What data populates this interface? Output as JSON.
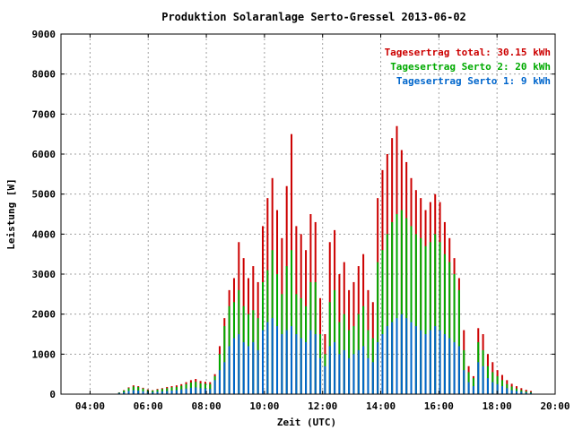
{
  "chart_data": {
    "type": "bar",
    "title": "Produktion Solaranlage Serto-Gressel 2013-06-02",
    "xlabel": "Zeit (UTC)",
    "ylabel": "Leistung [W]",
    "ylim": [
      0,
      9000
    ],
    "xlim": [
      "03:00",
      "20:00"
    ],
    "y_ticks": [
      "0",
      "1000",
      "2000",
      "3000",
      "4000",
      "5000",
      "6000",
      "7000",
      "8000",
      "9000"
    ],
    "x_ticks": [
      "04:00",
      "06:00",
      "08:00",
      "10:00",
      "12:00",
      "14:00",
      "16:00",
      "18:00",
      "20:00"
    ],
    "grid": true,
    "legend_position": "top-right",
    "legend": [
      {
        "label": "Tagesertrag total: 30.15 kWh",
        "color": "#cc0000"
      },
      {
        "label": "Tagesertrag Serto 2: 20 kWh",
        "color": "#00aa00"
      },
      {
        "label": "Tagesertrag Serto 1: 9 kWh",
        "color": "#0066cc"
      }
    ],
    "series": [
      {
        "name": "Serto 1",
        "color": "#0066cc",
        "values": [
          30,
          50,
          80,
          100,
          90,
          70,
          60,
          50,
          60,
          70,
          80,
          90,
          100,
          120,
          140,
          160,
          170,
          150,
          140,
          130,
          350,
          600,
          800,
          1200,
          1400,
          1500,
          1300,
          1200,
          1300,
          1100,
          1600,
          1800,
          1900,
          1700,
          1500,
          1600,
          1700,
          1500,
          1400,
          1300,
          1600,
          1500,
          900,
          700,
          1200,
          1300,
          1000,
          1100,
          900,
          1000,
          1100,
          1200,
          900,
          800,
          1300,
          1500,
          1700,
          1800,
          1900,
          2000,
          1900,
          1800,
          1700,
          1600,
          1500,
          1600,
          1700,
          1600,
          1500,
          1400,
          1300,
          1200,
          600,
          300,
          200,
          800,
          700,
          400,
          300,
          250,
          200,
          150,
          100,
          80,
          60,
          40,
          30
        ]
      },
      {
        "name": "Serto 2",
        "color": "#00aa00",
        "values": [
          40,
          90,
          150,
          190,
          180,
          140,
          100,
          90,
          110,
          130,
          150,
          170,
          180,
          210,
          250,
          290,
          310,
          270,
          260,
          250,
          450,
          1000,
          1700,
          2200,
          2300,
          2600,
          2200,
          2000,
          2100,
          1900,
          2800,
          3100,
          3600,
          3000,
          2500,
          3200,
          3600,
          2500,
          2400,
          2200,
          2800,
          2800,
          1500,
          1000,
          2300,
          2600,
          1800,
          2000,
          1600,
          1700,
          2000,
          2200,
          1600,
          1400,
          3300,
          3600,
          4000,
          4300,
          4500,
          4600,
          4400,
          4200,
          4000,
          3900,
          3700,
          3800,
          4000,
          3800,
          3500,
          3300,
          3000,
          2600,
          1100,
          550,
          400,
          1300,
          1100,
          700,
          550,
          450,
          350,
          250,
          190,
          140,
          100,
          70,
          50
        ]
      },
      {
        "name": "total",
        "color": "#cc0000",
        "values": [
          45,
          100,
          170,
          220,
          200,
          160,
          120,
          100,
          130,
          150,
          180,
          200,
          220,
          250,
          300,
          350,
          380,
          330,
          310,
          300,
          500,
          1200,
          1900,
          2600,
          2900,
          3800,
          3400,
          2900,
          3200,
          2800,
          4200,
          4900,
          5400,
          4600,
          3900,
          5200,
          6500,
          4200,
          4000,
          3600,
          4500,
          4300,
          2400,
          1500,
          3800,
          4100,
          3000,
          3300,
          2600,
          2800,
          3200,
          3500,
          2600,
          2300,
          4900,
          5600,
          6000,
          6400,
          6700,
          6100,
          5800,
          5400,
          5100,
          4900,
          4600,
          4800,
          5000,
          4800,
          4300,
          3900,
          3400,
          2900,
          1600,
          700,
          450,
          1650,
          1500,
          1000,
          800,
          600,
          480,
          350,
          260,
          200,
          150,
          110,
          80
        ]
      }
    ]
  }
}
